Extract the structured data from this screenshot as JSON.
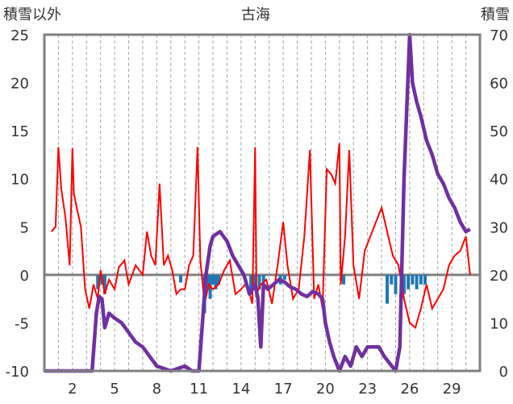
{
  "chart_data": {
    "type": "line",
    "title": "古海",
    "ylabel_left": "積雪以外",
    "ylabel_right": "積雪",
    "left_axis": {
      "min": -10,
      "max": 25,
      "ticks": [
        "25",
        "20",
        "15",
        "10",
        "5",
        "0",
        "-5",
        "-10"
      ]
    },
    "right_axis": {
      "min": 0,
      "max": 70,
      "ticks": [
        "70",
        "60",
        "50",
        "40",
        "30",
        "20",
        "10",
        "0"
      ]
    },
    "x_axis": {
      "min": 0,
      "max": 31,
      "tick_labels": [
        "2",
        "5",
        "8",
        "11",
        "14",
        "17",
        "20",
        "23",
        "26",
        "29"
      ],
      "tick_positions": [
        2,
        5,
        8,
        11,
        14,
        17,
        20,
        23,
        26,
        29
      ]
    },
    "grid": "vertical dashed daily lines",
    "colors": {
      "temperature": "#ff0000",
      "precip": "#1f77b4",
      "snow": "#7030a0",
      "zero_line": "#808080",
      "frame": "#808080"
    },
    "series": [
      {
        "key": "temperature",
        "axis": "left",
        "x": [
          0.5,
          0.8,
          1.0,
          1.2,
          1.5,
          1.8,
          2.0,
          2.1,
          2.3,
          2.6,
          2.9,
          3.2,
          3.5,
          3.8,
          4.0,
          4.3,
          4.6,
          5.0,
          5.3,
          5.7,
          6.0,
          6.5,
          7.0,
          7.3,
          7.6,
          7.9,
          8.2,
          8.5,
          8.8,
          9.1,
          9.4,
          9.7,
          10.0,
          10.3,
          10.6,
          10.9,
          11.1,
          11.4,
          11.7,
          12.0,
          12.4,
          12.8,
          13.2,
          13.6,
          14.0,
          14.4,
          14.8,
          15.0,
          15.1,
          15.4,
          15.8,
          16.2,
          16.6,
          17.0,
          17.3,
          17.7,
          18.1,
          18.5,
          18.9,
          19.2,
          19.5,
          19.8,
          20.1,
          20.4,
          20.7,
          21.0,
          21.1,
          21.4,
          21.7,
          22.0,
          22.4,
          22.8,
          23.2,
          23.6,
          24.0,
          24.4,
          24.8,
          25.2,
          25.6,
          26.0,
          26.4,
          26.8,
          27.2,
          27.6,
          28.0,
          28.4,
          28.8,
          29.2,
          29.6,
          30.0,
          30.3
        ],
        "y": [
          4.5,
          5.0,
          13.3,
          9.0,
          6.0,
          1.0,
          13.2,
          8.5,
          7.0,
          5.0,
          -1.5,
          -3.5,
          -1.0,
          -2.5,
          0.5,
          -2.0,
          -0.5,
          -1.5,
          0.8,
          1.5,
          -1.0,
          1.0,
          0.0,
          4.5,
          2.0,
          1.0,
          9.5,
          1.0,
          2.0,
          0.5,
          -2.0,
          -1.5,
          -1.5,
          1.0,
          2.0,
          13.3,
          1.5,
          -3.0,
          -1.0,
          -1.5,
          -1.0,
          0.5,
          1.5,
          -2.0,
          -1.5,
          -0.8,
          -3.0,
          13.3,
          -2.0,
          -1.0,
          -0.5,
          -3.0,
          1.0,
          5.5,
          1.0,
          -2.5,
          -1.5,
          4.0,
          13.0,
          -2.5,
          -1.0,
          -3.5,
          11.0,
          10.5,
          9.5,
          13.7,
          -1.0,
          4.0,
          13.0,
          1.0,
          -2.5,
          2.5,
          4.0,
          5.5,
          7.0,
          4.5,
          2.0,
          1.0,
          -2.5,
          -5.0,
          -5.5,
          -3.5,
          -1.0,
          -3.5,
          -2.5,
          -1.5,
          1.0,
          2.0,
          2.5,
          4.0,
          0.0
        ]
      },
      {
        "key": "precip",
        "axis": "left",
        "type": "bar",
        "x": [
          3.8,
          4.1,
          4.3,
          9.7,
          11.4,
          11.6,
          11.8,
          12.0,
          12.2,
          12.4,
          14.7,
          15.0,
          15.3,
          15.6,
          16.8,
          17.1,
          21.3,
          24.4,
          24.7,
          25.0,
          25.6,
          25.9,
          26.2,
          26.5,
          26.8,
          27.1
        ],
        "y": [
          -1.5,
          -1.0,
          -2.0,
          -0.8,
          -4.0,
          -1.5,
          -2.5,
          -1.0,
          -1.5,
          -1.0,
          -2.0,
          -1.0,
          -1.5,
          -0.8,
          -1.0,
          -0.5,
          -1.0,
          -3.0,
          -1.0,
          -2.0,
          -2.0,
          -1.5,
          -1.0,
          -1.5,
          -1.0,
          -1.0
        ]
      },
      {
        "key": "snow",
        "axis": "right",
        "x": [
          0.0,
          2.0,
          3.4,
          3.7,
          3.9,
          4.1,
          4.3,
          4.6,
          5.0,
          5.5,
          6.0,
          6.5,
          7.0,
          7.5,
          8.0,
          8.5,
          9.0,
          9.5,
          10.0,
          10.5,
          11.0,
          11.5,
          11.8,
          12.0,
          12.5,
          13.0,
          13.4,
          13.8,
          14.2,
          14.6,
          15.0,
          15.2,
          15.4,
          15.6,
          15.9,
          16.3,
          16.7,
          17.1,
          17.5,
          17.9,
          18.3,
          18.7,
          19.1,
          19.5,
          19.8,
          20.0,
          20.3,
          20.6,
          21.0,
          21.4,
          21.8,
          22.2,
          22.6,
          23.0,
          23.4,
          23.8,
          24.2,
          24.6,
          25.0,
          25.3,
          25.6,
          25.8,
          26.0,
          26.2,
          26.5,
          26.8,
          27.2,
          27.6,
          28.0,
          28.4,
          28.8,
          29.2,
          29.6,
          30.0,
          30.3
        ],
        "y": [
          0,
          0,
          0,
          12.0,
          15.5,
          15.0,
          9.0,
          12.0,
          11.0,
          10.0,
          8.0,
          6.0,
          5.0,
          3.0,
          1.0,
          0.5,
          0.0,
          0.5,
          1.0,
          0.0,
          0.0,
          20.0,
          26.0,
          28.0,
          29.0,
          27.0,
          24.0,
          22.0,
          20.0,
          16.0,
          18.0,
          15.0,
          5.0,
          18.0,
          17.0,
          18.0,
          19.0,
          18.5,
          17.5,
          17.0,
          16.0,
          15.5,
          16.5,
          16.0,
          15.0,
          10.0,
          6.0,
          3.0,
          0.0,
          3.0,
          1.0,
          5.0,
          3.0,
          5.0,
          5.0,
          5.0,
          3.0,
          1.5,
          0.0,
          5.0,
          40.0,
          55.0,
          70.0,
          60.0,
          56.0,
          53.0,
          48.0,
          45.0,
          41.0,
          39.0,
          36.0,
          34.0,
          31.0,
          29.0,
          29.5
        ]
      }
    ]
  }
}
